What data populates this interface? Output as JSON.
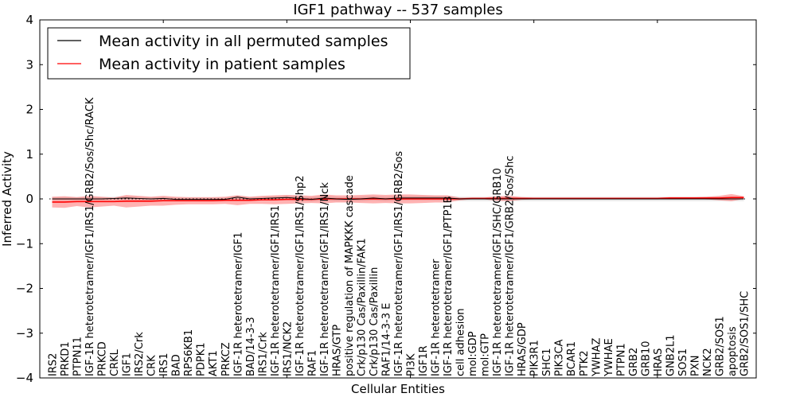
{
  "chart_data": {
    "type": "line",
    "title": "IGF1 pathway -- 537 samples",
    "xlabel": "Cellular Entities",
    "ylabel": "Inferred Activity",
    "ylim": [
      -4,
      4
    ],
    "xlim": [
      0,
      58
    ],
    "yticks": [
      "4",
      "3",
      "2",
      "1",
      "0",
      "−1",
      "−2",
      "−3",
      "−4"
    ],
    "ytick_values": [
      4,
      3,
      2,
      1,
      0,
      -1,
      -2,
      -3,
      -4
    ],
    "grid": false,
    "legend_position": "top-left",
    "legend": [
      {
        "label": "Mean activity in all permuted samples",
        "color": "#000000"
      },
      {
        "label": "Mean activity in patient samples",
        "color": "#ff0000"
      }
    ],
    "categories": [
      "IRS2",
      "PRKD1",
      "PTPN11",
      "IGF-1R heterotetramer/IGF1/IRS1/GRB2/Sos/Shc/RACK",
      "PRKCD",
      "CRKL",
      "IGF1",
      "IRS2/Crk",
      "CRK",
      "IRS1",
      "BAD",
      "RPS6KB1",
      "PDPK1",
      "AKT1",
      "PRKCZ",
      "IGF-1R heterotetramer/IGF1",
      "BAD/14-3-3",
      "IRS1/Crk",
      "IGF-1R heterotetramer/IGF1/IRS1",
      "IRS1/NCK2",
      "IGF-1R heterotetramer/IGF1/IRS1/Shp2",
      "RAF1",
      "IGF-1R heterotetramer/IGF1/IRS1/Nck",
      "HRAS/GTP",
      "positive regulation of MAPKKK cascade",
      "Crk/p130 Cas/Paxillin/FAK1",
      "Crk/p130 Cas/Paxillin",
      "RAF1/14-3-3 E",
      "IGF-1R heterotetramer/IGF1/IRS1/GRB2/Sos",
      "PI3K",
      "IGF1R",
      "IGF-1R heterotetramer",
      "IGF-1R heterotetramer/IGF1/PTP1B",
      "cell adhesion",
      "mol:GDP",
      "mol:GTP",
      "IGF-1R heterotetramer/IGF1/SHC/GRB10",
      "IGF-1R heterotetramer/IGF1/GRB2/Sos/Shc",
      "HRAS/GDP",
      "PIK3R1",
      "SHC1",
      "PIK3CA",
      "BCAR1",
      "PTK2",
      "YWHAZ",
      "YWHAE",
      "PTPN1",
      "GRB2",
      "GRB10",
      "HRAS",
      "GNB2L1",
      "SOS1",
      "PXN",
      "NCK2",
      "GRB2/SOS1",
      "apoptosis",
      "GRB2/SOS1/SHC"
    ],
    "series": [
      {
        "name": "Mean activity in all permuted samples",
        "color": "#000000",
        "values": [
          0,
          0,
          0,
          0,
          0,
          0.01,
          0.02,
          0.01,
          0,
          0.01,
          -0.01,
          -0.01,
          -0.01,
          -0.01,
          -0.01,
          0.04,
          0,
          0.01,
          0.02,
          0.03,
          0.01,
          -0.01,
          0.02,
          0,
          -0.01,
          0,
          0.02,
          0,
          0.02,
          0.02,
          0.02,
          0.02,
          0.02,
          0,
          0,
          0,
          0,
          0,
          0,
          0,
          0,
          0,
          0,
          0,
          0,
          0,
          0,
          0,
          0,
          0,
          0,
          0,
          0,
          0,
          0,
          0,
          0
        ],
        "band": [
          0.04,
          0.04,
          0.04,
          0.04,
          0.04,
          0.04,
          0.04,
          0.04,
          0.04,
          0.04,
          0.04,
          0.04,
          0.04,
          0.04,
          0.04,
          0.04,
          0.04,
          0.04,
          0.04,
          0.05,
          0.05,
          0.05,
          0.05,
          0.05,
          0.05,
          0.05,
          0.05,
          0.05,
          0.05,
          0.05,
          0.05,
          0.05,
          0.05,
          0.05,
          0.05,
          0.05,
          0.05,
          0.05,
          0.05,
          0.05,
          0.05,
          0.05,
          0.05,
          0.05,
          0.05,
          0.05,
          0.05,
          0.05,
          0.05,
          0.05,
          0.05,
          0.05,
          0.05,
          0.05,
          0.05,
          0.05,
          0.05
        ]
      },
      {
        "name": "Mean activity in patient samples",
        "color": "#ff0000",
        "values": [
          -0.07,
          -0.07,
          -0.06,
          -0.06,
          -0.06,
          -0.06,
          -0.05,
          -0.05,
          -0.05,
          -0.04,
          -0.04,
          -0.04,
          -0.04,
          -0.04,
          -0.03,
          -0.03,
          -0.03,
          -0.02,
          -0.02,
          -0.01,
          -0.01,
          -0.01,
          0,
          0,
          0,
          0,
          0,
          0,
          0,
          0,
          0,
          0,
          0,
          0,
          0.01,
          0.01,
          0.01,
          0.01,
          0.01,
          0.01,
          0.01,
          0.01,
          0.01,
          0.01,
          0.01,
          0.01,
          0.01,
          0.01,
          0.01,
          0.01,
          0.02,
          0.02,
          0.02,
          0.02,
          0.02,
          0.03,
          0.03
        ],
        "band": [
          0.12,
          0.13,
          0.1,
          0.13,
          0.11,
          0.09,
          0.14,
          0.12,
          0.1,
          0.11,
          0.09,
          0.08,
          0.08,
          0.08,
          0.08,
          0.11,
          0.08,
          0.09,
          0.1,
          0.1,
          0.09,
          0.08,
          0.1,
          0.08,
          0.08,
          0.09,
          0.1,
          0.09,
          0.1,
          0.1,
          0.09,
          0.08,
          0.08,
          0.03,
          0.02,
          0.02,
          0.05,
          0.06,
          0.03,
          0.02,
          0.02,
          0.02,
          0.02,
          0.02,
          0.02,
          0.02,
          0.02,
          0.02,
          0.02,
          0.02,
          0.02,
          0.02,
          0.02,
          0.03,
          0.05,
          0.08,
          0.03
        ]
      }
    ]
  }
}
